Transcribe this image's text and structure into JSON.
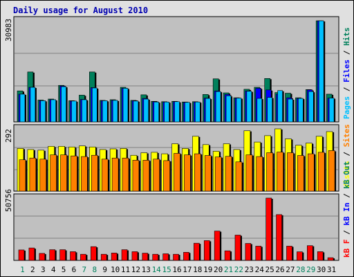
{
  "title": "Daily usage for August 2010",
  "colors": {
    "hits": "#00805c",
    "files": "#0000ff",
    "pages": "#00c0ff",
    "sites": "#ff8000",
    "visits": "#ffff00",
    "kbin": "#0000ff",
    "kbout": "#00805c",
    "kbf": "#ff0000",
    "weekday": "#000000",
    "weekend": "#00805c",
    "panel": "#c0c0c0",
    "grid": "#808080"
  },
  "chart_data": [
    {
      "type": "bar",
      "panel": "top",
      "ymax_label": "30983",
      "ylim": [
        0,
        30983
      ],
      "legend": [
        {
          "text": "Pages",
          "color": "#00c0ff"
        },
        {
          "text": " / ",
          "color": "#000000"
        },
        {
          "text": "Files",
          "color": "#0000ff"
        },
        {
          "text": " / ",
          "color": "#000000"
        },
        {
          "text": "Hits",
          "color": "#00805c"
        }
      ],
      "categories": [
        "1",
        "2",
        "3",
        "4",
        "5",
        "6",
        "7",
        "8",
        "9",
        "10",
        "11",
        "12",
        "13",
        "14",
        "15",
        "16",
        "17",
        "18",
        "19",
        "20",
        "21",
        "22",
        "23",
        "24",
        "25",
        "26",
        "27",
        "28",
        "29",
        "30",
        "31"
      ],
      "series": [
        {
          "name": "Hits",
          "values": [
            9500,
            15300,
            6700,
            7000,
            11200,
            6500,
            8200,
            15300,
            6600,
            6800,
            10600,
            6600,
            8300,
            6300,
            6200,
            6300,
            6100,
            6200,
            8400,
            13200,
            8900,
            7400,
            10000,
            10600,
            13300,
            9000,
            8800,
            7400,
            9900,
            30983,
            8500
          ]
        },
        {
          "name": "Files",
          "values": [
            8500,
            10600,
            6500,
            6800,
            11000,
            6400,
            6900,
            10500,
            6500,
            6600,
            10300,
            6500,
            7200,
            6200,
            6100,
            6200,
            6000,
            6100,
            7300,
            9500,
            8400,
            7300,
            9500,
            10300,
            9800,
            8500,
            7400,
            7200,
            9800,
            30983,
            7300
          ]
        },
        {
          "name": "Pages",
          "values": [
            8500,
            10600,
            6500,
            6800,
            10800,
            6400,
            6800,
            10400,
            6500,
            6600,
            10300,
            6400,
            7000,
            6100,
            6100,
            6200,
            6000,
            6100,
            7200,
            9300,
            8000,
            7300,
            9400,
            7200,
            7500,
            9600,
            7000,
            7200,
            9300,
            30983,
            7300
          ]
        }
      ],
      "xlabel": "",
      "ylabel": ""
    },
    {
      "type": "bar",
      "panel": "middle",
      "ymax_label": "292",
      "ylim": [
        0,
        292
      ],
      "legend": [
        {
          "text": "Visits",
          "color": "#ffff00"
        },
        {
          "text": " / ",
          "color": "#000000"
        },
        {
          "text": "Sites",
          "color": "#ff8000"
        }
      ],
      "categories": [
        "1",
        "2",
        "3",
        "4",
        "5",
        "6",
        "7",
        "8",
        "9",
        "10",
        "11",
        "12",
        "13",
        "14",
        "15",
        "16",
        "17",
        "18",
        "19",
        "20",
        "21",
        "22",
        "23",
        "24",
        "25",
        "26",
        "27",
        "28",
        "29",
        "30",
        "31"
      ],
      "series": [
        {
          "name": "Visits",
          "values": [
            200,
            195,
            192,
            210,
            210,
            207,
            212,
            207,
            195,
            198,
            200,
            168,
            180,
            182,
            175,
            222,
            200,
            257,
            218,
            187,
            222,
            195,
            283,
            230,
            260,
            292,
            245,
            215,
            225,
            257,
            279
          ]
        },
        {
          "name": "Sites",
          "values": [
            147,
            155,
            150,
            170,
            170,
            165,
            162,
            168,
            150,
            155,
            155,
            145,
            145,
            150,
            143,
            177,
            170,
            175,
            167,
            160,
            163,
            137,
            170,
            162,
            180,
            183,
            180,
            167,
            175,
            182,
            190
          ]
        }
      ],
      "xlabel": "",
      "ylabel": ""
    },
    {
      "type": "bar",
      "panel": "bottom",
      "ymax_label": "50756",
      "ylim": [
        0,
        50756
      ],
      "legend": [
        {
          "text": "kB F",
          "color": "#ff0000"
        },
        {
          "text": " / ",
          "color": "#000000"
        },
        {
          "text": "kB In",
          "color": "#0000ff"
        },
        {
          "text": " / ",
          "color": "#000000"
        },
        {
          "text": "kB Out",
          "color": "#00805c"
        }
      ],
      "categories": [
        "1",
        "2",
        "3",
        "4",
        "5",
        "6",
        "7",
        "8",
        "9",
        "10",
        "11",
        "12",
        "13",
        "14",
        "15",
        "16",
        "17",
        "18",
        "19",
        "20",
        "21",
        "22",
        "23",
        "24",
        "25",
        "26",
        "27",
        "28",
        "29",
        "30",
        "31"
      ],
      "series": [
        {
          "name": "kB F",
          "values": [
            8500,
            10100,
            5700,
            8700,
            8700,
            7100,
            5000,
            11200,
            5000,
            6000,
            8700,
            7100,
            5900,
            5000,
            5400,
            5000,
            6600,
            14000,
            16100,
            23900,
            7800,
            20600,
            13800,
            11600,
            50756,
            37300,
            11600,
            7000,
            12000,
            7100,
            2200
          ]
        }
      ],
      "xlabel": "",
      "ylabel": ""
    }
  ],
  "days": [
    {
      "label": "1",
      "weekend": true
    },
    {
      "label": "2",
      "weekend": false
    },
    {
      "label": "3",
      "weekend": false
    },
    {
      "label": "4",
      "weekend": false
    },
    {
      "label": "5",
      "weekend": false
    },
    {
      "label": "6",
      "weekend": false
    },
    {
      "label": "7",
      "weekend": true
    },
    {
      "label": "8",
      "weekend": true
    },
    {
      "label": "9",
      "weekend": false
    },
    {
      "label": "10",
      "weekend": false
    },
    {
      "label": "11",
      "weekend": false
    },
    {
      "label": "12",
      "weekend": false
    },
    {
      "label": "13",
      "weekend": false
    },
    {
      "label": "14",
      "weekend": true
    },
    {
      "label": "15",
      "weekend": true
    },
    {
      "label": "16",
      "weekend": false
    },
    {
      "label": "17",
      "weekend": false
    },
    {
      "label": "18",
      "weekend": false
    },
    {
      "label": "19",
      "weekend": false
    },
    {
      "label": "20",
      "weekend": false
    },
    {
      "label": "21",
      "weekend": true
    },
    {
      "label": "22",
      "weekend": true
    },
    {
      "label": "23",
      "weekend": false
    },
    {
      "label": "24",
      "weekend": false
    },
    {
      "label": "25",
      "weekend": false
    },
    {
      "label": "26",
      "weekend": false
    },
    {
      "label": "27",
      "weekend": false
    },
    {
      "label": "28",
      "weekend": true
    },
    {
      "label": "29",
      "weekend": true
    },
    {
      "label": "30",
      "weekend": false
    },
    {
      "label": "31",
      "weekend": false
    }
  ]
}
